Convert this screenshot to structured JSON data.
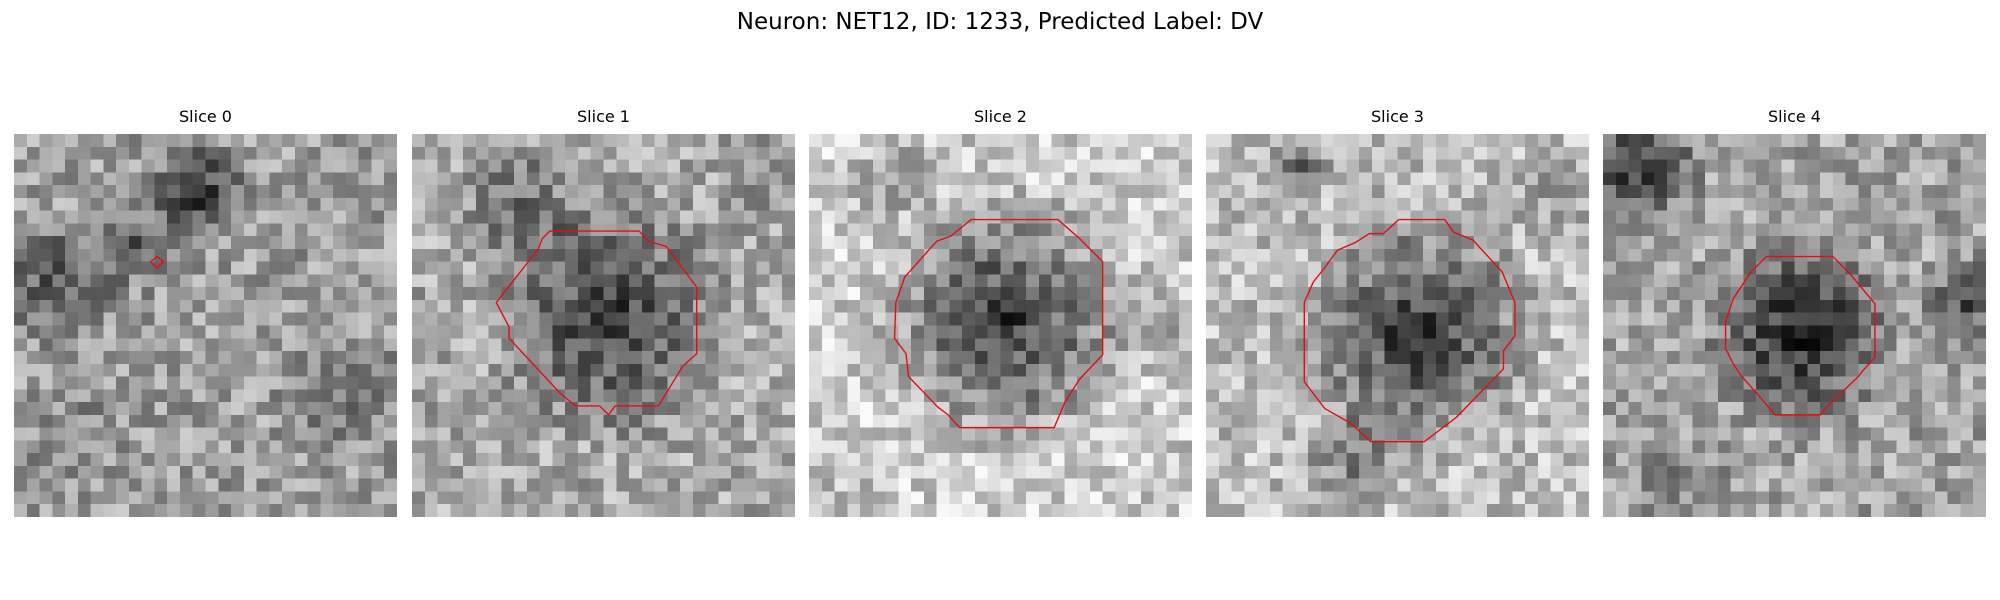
{
  "figure": {
    "title": "Neuron: NET12, ID: 1233, Predicted Label: DV"
  },
  "colors": {
    "background": "#ffffff",
    "contour": "#e01010",
    "colormap": "grayscale"
  },
  "panels": [
    {
      "title": "Slice 0",
      "has_contour": true
    },
    {
      "title": "Slice 1",
      "has_contour": true
    },
    {
      "title": "Slice 2",
      "has_contour": true
    },
    {
      "title": "Slice 3",
      "has_contour": true
    },
    {
      "title": "Slice 4",
      "has_contour": true
    }
  ]
}
